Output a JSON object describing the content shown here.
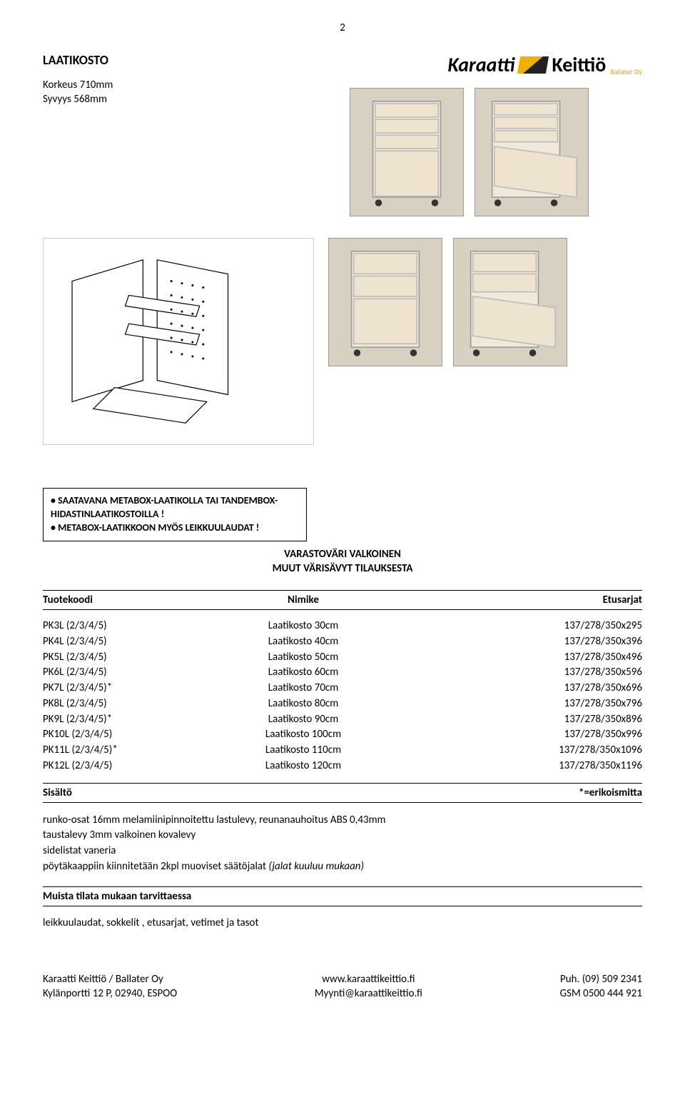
{
  "page_number": "2",
  "header": {
    "title": "LAATIKOSTO",
    "spec_line1": "Korkeus 710mm",
    "spec_line2": "Syvyys 568mm"
  },
  "logo": {
    "karaatti": "Karaatti",
    "keittio": "Keittiö",
    "sub": "Ballater Oy"
  },
  "callout": {
    "line1": "• SAATAVANA METABOX-LAATIKOLLA TAI TANDEMBOX-HIDASTINLAATIKOSTOILLA !",
    "line2": "• METABOX-LAATIKKOON MYÖS LEIKKUULAUDAT !"
  },
  "varasto": {
    "line1": "VARASTOVÄRI VALKOINEN",
    "line2": "MUUT VÄRISÄVYT TILAUKSESTA"
  },
  "table": {
    "headers": {
      "code": "Tuotekoodi",
      "name": "Nimike",
      "et": "Etusarjat"
    },
    "rows": [
      {
        "code": "PK3L (2/3/4/5)",
        "name": "Laatikosto 30cm",
        "et": "137/278/350x295"
      },
      {
        "code": "PK4L (2/3/4/5)",
        "name": "Laatikosto 40cm",
        "et": "137/278/350x396"
      },
      {
        "code": "PK5L (2/3/4/5)",
        "name": "Laatikosto 50cm",
        "et": "137/278/350x496"
      },
      {
        "code": "PK6L (2/3/4/5)",
        "name": "Laatikosto 60cm",
        "et": "137/278/350x596"
      },
      {
        "code": "PK7L (2/3/4/5)*",
        "name": "Laatikosto 70cm",
        "et": "137/278/350x696"
      },
      {
        "code": "PK8L (2/3/4/5)",
        "name": "Laatikosto 80cm",
        "et": "137/278/350x796"
      },
      {
        "code": "PK9L (2/3/4/5)*",
        "name": "Laatikosto 90cm",
        "et": "137/278/350x896"
      },
      {
        "code": "PK10L (2/3/4/5)",
        "name": "Laatikosto 100cm",
        "et": "137/278/350x996"
      },
      {
        "code": "PK11L (2/3/4/5)*",
        "name": "Laatikosto 110cm",
        "et": "137/278/350x1096"
      },
      {
        "code": "PK12L (2/3/4/5)",
        "name": "Laatikosto 120cm",
        "et": "137/278/350x1196"
      }
    ]
  },
  "sisalto": {
    "label": "Sisältö",
    "note": "*=erikoismitta"
  },
  "content": {
    "line1": "runko-osat 16mm melamiinipinnoitettu lastulevy, reunanauhoitus ABS 0,43mm",
    "line2": "taustalevy 3mm valkoinen kovalevy",
    "line3": "sidelistat vaneria",
    "line4a": "pöytäkaappiin kiinnitetään 2kpl muoviset säätöjalat ",
    "line4b": "(jalat kuuluu mukaan)"
  },
  "muista": "Muista tilata mukaan tarvittaessa",
  "bottom_line": "leikkuulaudat, sokkelit , etusarjat, vetimet ja tasot",
  "footer": {
    "left1": "Karaatti Keittiö / Ballater Oy",
    "left2": "Kylänportti 12 P, 02940, ESPOO",
    "mid1": "www.karaattikeittio.fi",
    "mid2": "Myynti@karaattikeittio.fi",
    "right1": "Puh. (09) 509 2341",
    "right2": "GSM 0500 444 921"
  },
  "colors": {
    "text": "#000000",
    "border": "#000000",
    "accent": "#e8a500",
    "img_bg": "#d8d0c0"
  }
}
